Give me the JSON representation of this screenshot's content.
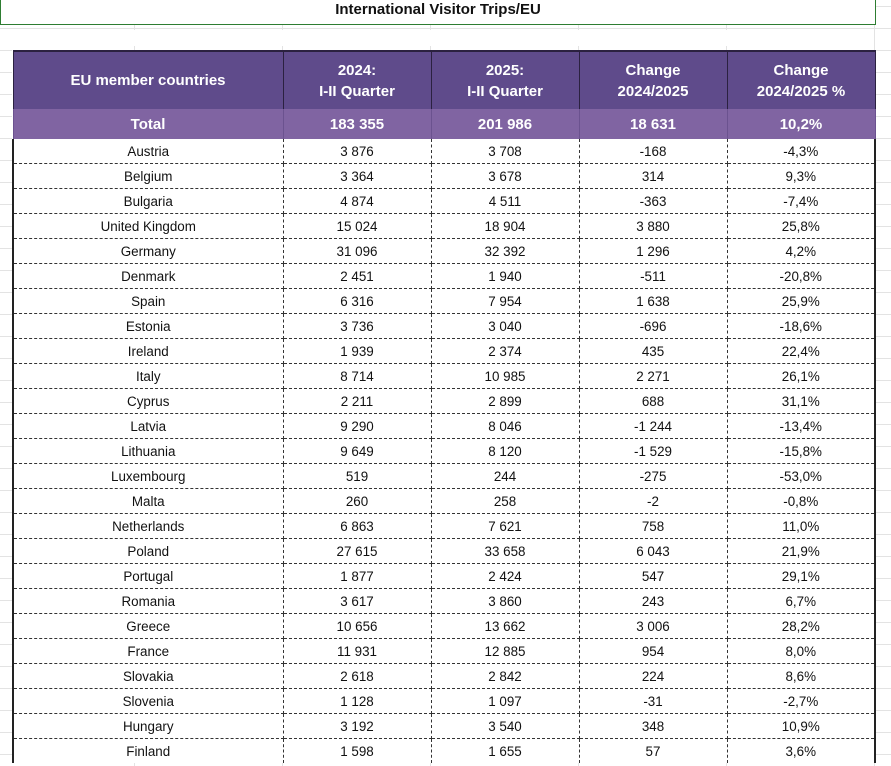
{
  "title": "International Visitor Trips/EU",
  "headers": [
    {
      "l1": "EU member countries",
      "l2": ""
    },
    {
      "l1": "2024:",
      "l2": "I-II Quarter"
    },
    {
      "l1": "2025:",
      "l2": "I-II Quarter"
    },
    {
      "l1": "Change",
      "l2": "2024/2025"
    },
    {
      "l1": "Change",
      "l2": "2024/2025 %"
    }
  ],
  "total": [
    "Total",
    "183 355",
    "201 986",
    "18 631",
    "10,2%"
  ],
  "rows": [
    [
      "Austria",
      "3 876",
      "3 708",
      "-168",
      "-4,3%"
    ],
    [
      "Belgium",
      "3 364",
      "3 678",
      "314",
      "9,3%"
    ],
    [
      "Bulgaria",
      "4 874",
      "4 511",
      "-363",
      "-7,4%"
    ],
    [
      "United Kingdom",
      "15 024",
      "18 904",
      "3 880",
      "25,8%"
    ],
    [
      "Germany",
      "31 096",
      "32 392",
      "1 296",
      "4,2%"
    ],
    [
      "Denmark",
      "2 451",
      "1 940",
      "-511",
      "-20,8%"
    ],
    [
      "Spain",
      "6 316",
      "7 954",
      "1 638",
      "25,9%"
    ],
    [
      "Estonia",
      "3 736",
      "3 040",
      "-696",
      "-18,6%"
    ],
    [
      "Ireland",
      "1 939",
      "2 374",
      "435",
      "22,4%"
    ],
    [
      "Italy",
      "8 714",
      "10 985",
      "2 271",
      "26,1%"
    ],
    [
      "Cyprus",
      "2 211",
      "2 899",
      "688",
      "31,1%"
    ],
    [
      "Latvia",
      "9 290",
      "8 046",
      "-1 244",
      "-13,4%"
    ],
    [
      "Lithuania",
      "9 649",
      "8 120",
      "-1 529",
      "-15,8%"
    ],
    [
      "Luxembourg",
      "519",
      "244",
      "-275",
      "-53,0%"
    ],
    [
      "Malta",
      "260",
      "258",
      "-2",
      "-0,8%"
    ],
    [
      "Netherlands",
      "6 863",
      "7 621",
      "758",
      "11,0%"
    ],
    [
      "Poland",
      "27 615",
      "33 658",
      "6 043",
      "21,9%"
    ],
    [
      "Portugal",
      "1 877",
      "2 424",
      "547",
      "29,1%"
    ],
    [
      "Romania",
      "3 617",
      "3 860",
      "243",
      "6,7%"
    ],
    [
      "Greece",
      "10 656",
      "13 662",
      "3 006",
      "28,2%"
    ],
    [
      "France",
      "11 931",
      "12 885",
      "954",
      "8,0%"
    ],
    [
      "Slovakia",
      "2 618",
      "2 842",
      "224",
      "8,6%"
    ],
    [
      "Slovenia",
      "1 128",
      "1 097",
      "-31",
      "-2,7%"
    ],
    [
      "Hungary",
      "3 192",
      "3 540",
      "348",
      "10,9%"
    ],
    [
      "Finland",
      "1 598",
      "1 655",
      "57",
      "3,6%"
    ]
  ],
  "colors": {
    "header_bg": "#5f4b8b",
    "total_bg": "#8064a2",
    "title_border": "#2e7d32"
  }
}
